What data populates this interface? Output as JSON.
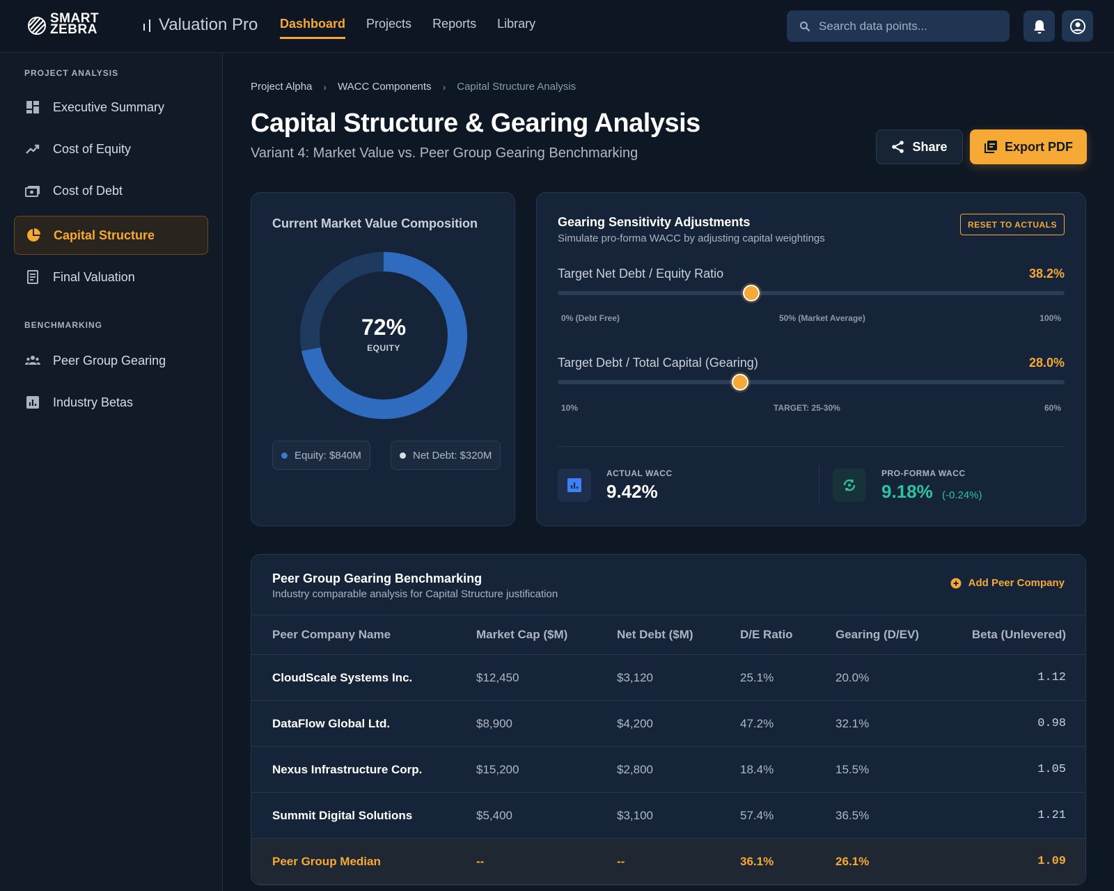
{
  "brand": {
    "logo_line1": "SMART",
    "logo_line2": "ZEBRA",
    "app_name": "Valuation Pro"
  },
  "nav": [
    {
      "label": "Dashboard",
      "active": true
    },
    {
      "label": "Projects"
    },
    {
      "label": "Reports"
    },
    {
      "label": "Library"
    }
  ],
  "search": {
    "placeholder": "Search data points..."
  },
  "sidebar": {
    "section1": "PROJECT ANALYSIS",
    "items1": [
      {
        "label": "Executive Summary",
        "icon": "dashboard-icon"
      },
      {
        "label": "Cost of Equity",
        "icon": "trend-icon"
      },
      {
        "label": "Cost of Debt",
        "icon": "cash-icon"
      },
      {
        "label": "Capital Structure",
        "icon": "pie-icon",
        "active": true
      },
      {
        "label": "Final Valuation",
        "icon": "document-icon"
      }
    ],
    "section2": "BENCHMARKING",
    "items2": [
      {
        "label": "Peer Group Gearing",
        "icon": "group-icon"
      },
      {
        "label": "Industry Betas",
        "icon": "bar-chart-icon"
      }
    ]
  },
  "breadcrumb": [
    "Project Alpha",
    "WACC Components",
    "Capital Structure Analysis"
  ],
  "page": {
    "title": "Capital Structure & Gearing Analysis",
    "subtitle": "Variant 4: Market Value vs. Peer Group Gearing Benchmarking",
    "share_label": "Share",
    "export_label": "Export PDF"
  },
  "composition": {
    "title": "Current Market Value Composition",
    "center_value": "72%",
    "center_label": "EQUITY",
    "equity_fraction": 0.72,
    "legend_equity": "Equity: $840M",
    "legend_debt": "Net Debt: $320M"
  },
  "sensitivity": {
    "title": "Gearing Sensitivity Adjustments",
    "subtitle": "Simulate pro-forma WACC by adjusting capital weightings",
    "reset_label": "RESET TO ACTUALS",
    "slider1": {
      "label": "Target Net Debt / Equity Ratio",
      "value_text": "38.2%",
      "value": 38.2,
      "min": 0,
      "max": 100,
      "tick_min": "0% (Debt Free)",
      "tick_mid": "50% (Market Average)",
      "tick_max": "100%"
    },
    "slider2": {
      "label": "Target Debt / Total Capital (Gearing)",
      "value_text": "28.0%",
      "value": 28.0,
      "min": 10,
      "max": 60,
      "tick_min": "10%",
      "tick_mid": "TARGET: 25-30%",
      "tick_max": "60%"
    },
    "actual_wacc_label": "ACTUAL WACC",
    "actual_wacc_value": "9.42%",
    "proforma_wacc_label": "PRO-FORMA WACC",
    "proforma_wacc_value": "9.18%",
    "proforma_delta": "(-0.24%)"
  },
  "peers": {
    "title": "Peer Group Gearing Benchmarking",
    "subtitle": "Industry comparable analysis for Capital Structure justification",
    "add_label": "Add Peer Company",
    "headers": [
      "Peer Company Name",
      "Market Cap ($M)",
      "Net Debt ($M)",
      "D/E Ratio",
      "Gearing (D/EV)",
      "Beta (Unlevered)"
    ],
    "rows": [
      [
        "CloudScale Systems Inc.",
        "$12,450",
        "$3,120",
        "25.1%",
        "20.0%",
        "1.12"
      ],
      [
        "DataFlow Global Ltd.",
        "$8,900",
        "$4,200",
        "47.2%",
        "32.1%",
        "0.98"
      ],
      [
        "Nexus Infrastructure Corp.",
        "$15,200",
        "$2,800",
        "18.4%",
        "15.5%",
        "1.05"
      ],
      [
        "Summit Digital Solutions",
        "$5,400",
        "$3,100",
        "57.4%",
        "36.5%",
        "1.21"
      ]
    ],
    "median": [
      "Peer Group Median",
      "--",
      "--",
      "36.1%",
      "26.1%",
      "1.09"
    ]
  },
  "colors": {
    "accent": "#f6a935",
    "equity": "#2f6bbf",
    "debt": "#1f3a5f",
    "positive": "#2cc3a0"
  }
}
